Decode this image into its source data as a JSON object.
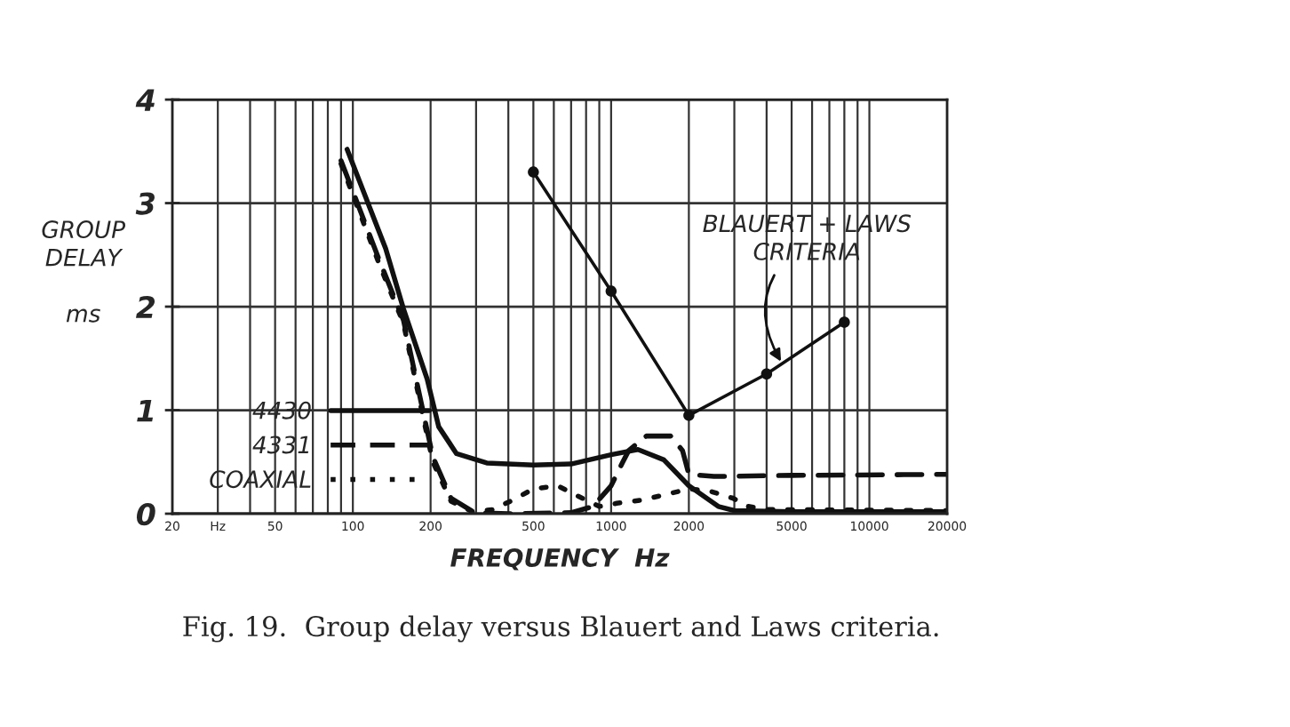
{
  "chart_data": {
    "type": "line",
    "xlabel": "FREQUENCY  Hz",
    "ylabel": "GROUP\nDELAY\n\nms",
    "log": "x",
    "grid": true,
    "legend": "bottom left",
    "xlim": [
      20,
      20000
    ],
    "ylim": [
      0,
      4
    ],
    "xticks": [
      20,
      {
        "value": 30,
        "label": "Hz"
      },
      {
        "value": 40,
        "label": null
      },
      50,
      {
        "value": 60,
        "label": null
      },
      {
        "value": 70,
        "label": null
      },
      {
        "value": 80,
        "label": null
      },
      {
        "value": 90,
        "label": null
      },
      100,
      200,
      {
        "value": 300,
        "label": null
      },
      {
        "value": 400,
        "label": null
      },
      500,
      {
        "value": 600,
        "label": null
      },
      {
        "value": 700,
        "label": null
      },
      {
        "value": 800,
        "label": null
      },
      {
        "value": 900,
        "label": null
      },
      1000,
      2000,
      {
        "value": 3000,
        "label": null
      },
      {
        "value": 4000,
        "label": null
      },
      5000,
      {
        "value": 6000,
        "label": null
      },
      {
        "value": 7000,
        "label": null
      },
      {
        "value": 8000,
        "label": null
      },
      {
        "value": 9000,
        "label": null
      },
      10000,
      20000
    ],
    "yticks": [
      0,
      1,
      2,
      3,
      4
    ],
    "series": [
      {
        "name": "4430",
        "color": "#111111",
        "line_style": "solid",
        "x": [
          95,
          134,
          157,
          194,
          215,
          252,
          330,
          500,
          700,
          1000,
          1270,
          1600,
          2000,
          2600,
          3000,
          5000,
          20000
        ],
        "values": [
          3.52,
          2.56,
          1.98,
          1.3,
          0.84,
          0.58,
          0.49,
          0.47,
          0.48,
          0.57,
          0.62,
          0.52,
          0.27,
          0.07,
          0.03,
          0.02,
          0.02
        ]
      },
      {
        "name": "4331",
        "color": "#111111",
        "line_style": "dashed",
        "x": [
          90,
          127,
          157,
          184,
          204,
          240,
          296,
          400,
          700,
          850,
          1000,
          1110,
          1170,
          1370,
          1700,
          1890,
          2000,
          2500,
          5000,
          20000
        ],
        "values": [
          3.41,
          2.44,
          1.87,
          1.07,
          0.55,
          0.15,
          0.01,
          0.0,
          0.01,
          0.07,
          0.27,
          0.5,
          0.61,
          0.75,
          0.75,
          0.61,
          0.38,
          0.36,
          0.37,
          0.38
        ]
      },
      {
        "name": "COAXIAL",
        "color": "#111111",
        "line_style": "dotted",
        "x": [
          90,
          127,
          157,
          184,
          204,
          240,
          290,
          350,
          430,
          500,
          620,
          730,
          900,
          1050,
          1300,
          1600,
          2000,
          2400,
          2960,
          3400,
          4000,
          20000
        ],
        "values": [
          3.38,
          2.4,
          1.84,
          1.02,
          0.5,
          0.12,
          0.02,
          0.04,
          0.15,
          0.24,
          0.27,
          0.18,
          0.07,
          0.1,
          0.13,
          0.18,
          0.24,
          0.22,
          0.15,
          0.07,
          0.04,
          0.03
        ]
      },
      {
        "color": "#111111",
        "line_style": "solid",
        "marker": "circle",
        "x": [
          500,
          1000,
          2000,
          4000,
          8000
        ],
        "values": [
          3.3,
          2.15,
          0.95,
          1.35,
          1.85
        ]
      }
    ],
    "annotations": [
      {
        "text": "BLAUERT + LAWS\nCRITERIA",
        "x": 4600,
        "y": 1.45
      },
      "Fig. 19.  Group delay versus Blauert and Laws criteria."
    ]
  }
}
